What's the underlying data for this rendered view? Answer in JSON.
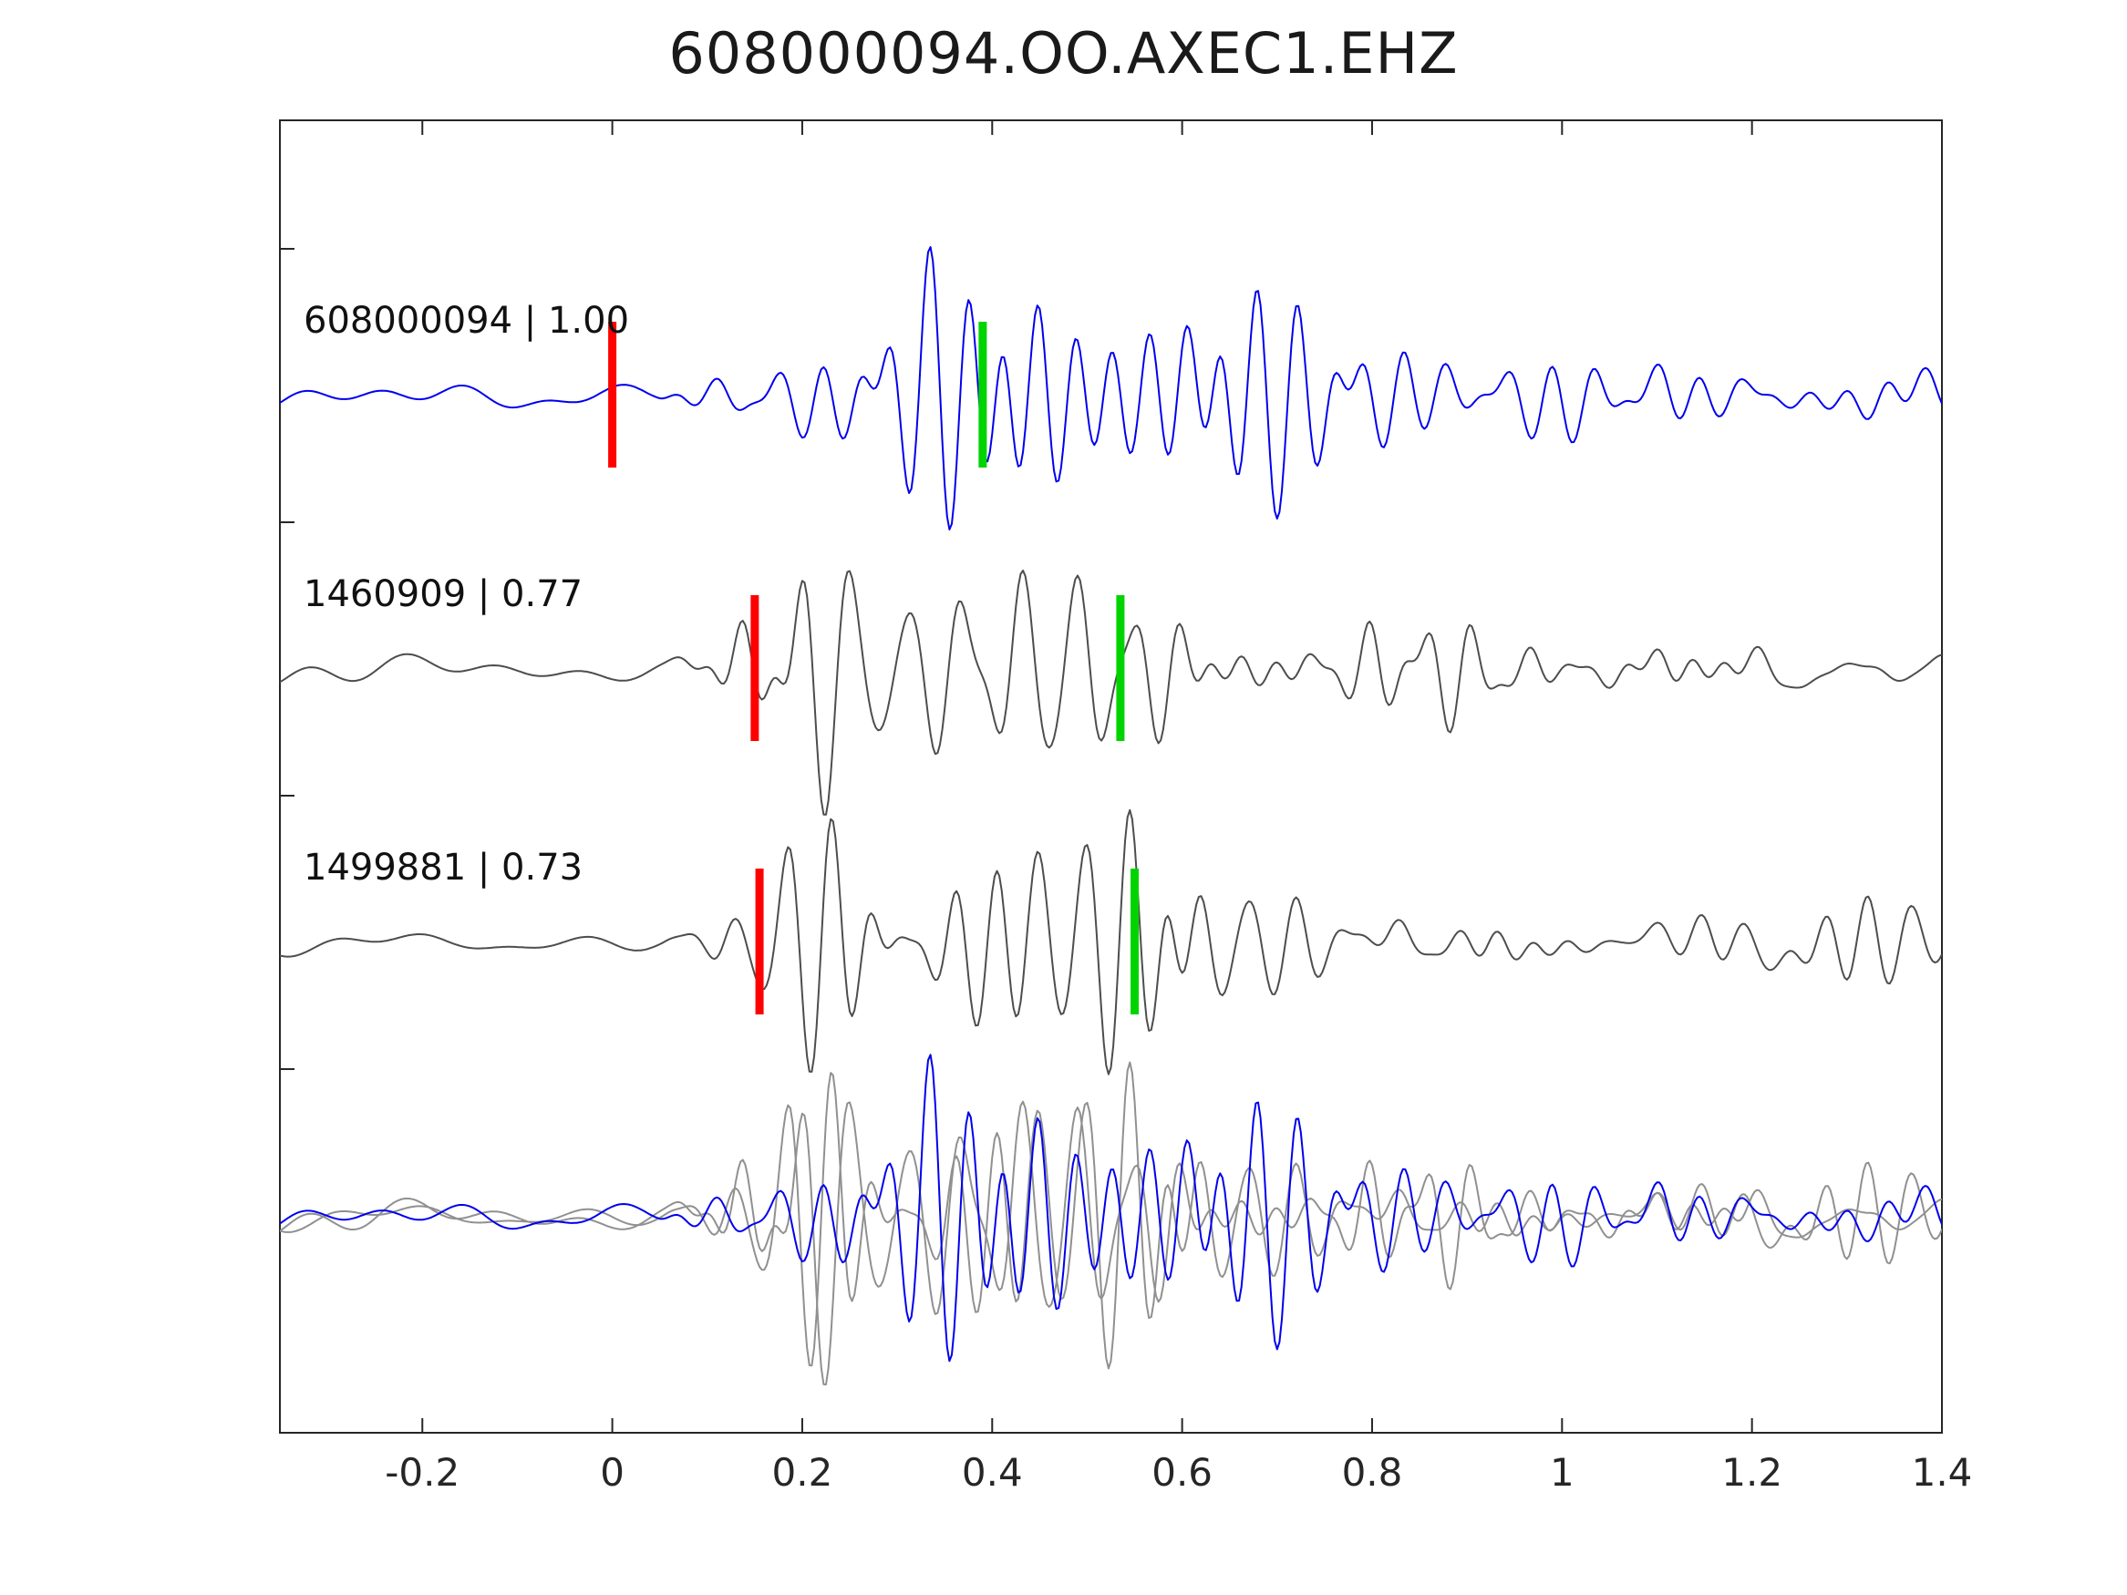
{
  "title": "608000094.OO.AXEC1.EHZ",
  "colors": {
    "template_trace": "#0000ee",
    "detection_trace": "#4d4d4d",
    "overlay_gray": "#909090",
    "pick_red": "#ff0000",
    "pick_green": "#00d400",
    "axis": "#262626",
    "text": "#1a1a1a"
  },
  "chart_data": {
    "type": "line",
    "title": "608000094.OO.AXEC1.EHZ",
    "xlabel": "",
    "ylabel": "",
    "xlim": [
      -0.35,
      1.4
    ],
    "xticks": [
      -0.2,
      0,
      0.2,
      0.4,
      0.6,
      0.8,
      1,
      1.2,
      1.4
    ],
    "xtick_labels": [
      "-0.2",
      "0",
      "0.2",
      "0.4",
      "0.6",
      "0.8",
      "1",
      "1.2",
      "1.4"
    ],
    "grid": false,
    "legend": "none",
    "rows": [
      {
        "id": "608000094",
        "label": "608000094 | 1.00",
        "correlation": 1.0,
        "role": "template",
        "color_key": "template_trace",
        "picks": [
          {
            "time": 0.0,
            "color_key": "pick_red"
          },
          {
            "time": 0.39,
            "color_key": "pick_green"
          }
        ],
        "seed": 17,
        "noise_level": 0.1
      },
      {
        "id": "1460909",
        "label": "1460909 | 0.77",
        "correlation": 0.77,
        "role": "detection",
        "color_key": "detection_trace",
        "picks": [
          {
            "time": 0.15,
            "color_key": "pick_red"
          },
          {
            "time": 0.535,
            "color_key": "pick_green"
          }
        ],
        "seed": 43,
        "noise_level": 0.13
      },
      {
        "id": "1499881",
        "label": "1499881 | 0.73",
        "correlation": 0.73,
        "role": "detection",
        "color_key": "detection_trace",
        "picks": [
          {
            "time": 0.155,
            "color_key": "pick_red"
          },
          {
            "time": 0.55,
            "color_key": "pick_green"
          }
        ],
        "seed": 77,
        "noise_level": 0.13
      },
      {
        "id": "overlay",
        "label": "",
        "role": "overlay",
        "overlay_of": [
          "1460909",
          "1499881",
          "608000094"
        ],
        "picks": [],
        "seed": 0,
        "noise_level": 0.0
      }
    ],
    "waveform_synthesis": {
      "dt": 0.0025,
      "burst_components": 7,
      "burst_freq": [
        16,
        30
      ],
      "noise_components": 6,
      "noise_freq": [
        3,
        14
      ],
      "envelope": [
        [
          -0.35,
          0.0
        ],
        [
          0.05,
          0.0
        ],
        [
          0.1,
          0.15
        ],
        [
          0.16,
          0.45
        ],
        [
          0.22,
          0.7
        ],
        [
          0.3,
          0.95
        ],
        [
          0.34,
          1.0
        ],
        [
          0.42,
          0.85
        ],
        [
          0.5,
          0.6
        ],
        [
          0.6,
          0.45
        ],
        [
          0.7,
          0.28
        ],
        [
          0.85,
          0.18
        ],
        [
          1.05,
          0.14
        ],
        [
          1.4,
          0.11
        ]
      ]
    }
  }
}
